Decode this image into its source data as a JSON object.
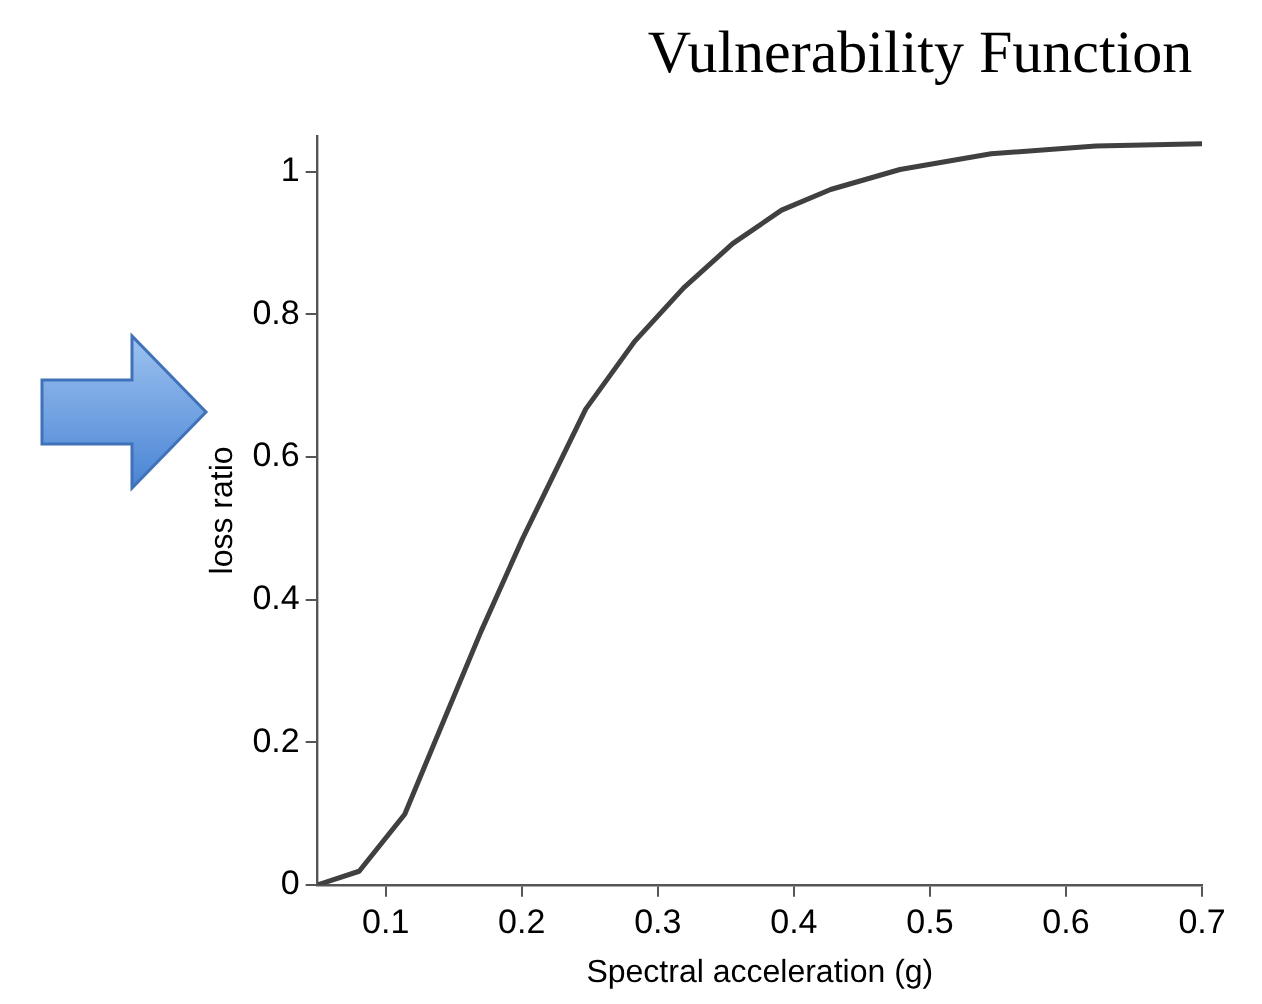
{
  "chart_data": {
    "type": "line",
    "title": "Vulnerability Function",
    "xlabel": "Spectral acceleration (g)",
    "ylabel": "loss ratio",
    "x": [
      0.05,
      0.0805,
      0.114,
      0.145,
      0.17,
      0.201,
      0.247,
      0.283,
      0.319,
      0.355,
      0.391,
      0.427,
      0.478,
      0.545,
      0.622,
      0.7
    ],
    "series": [
      {
        "color": "#404040",
        "values": [
          0,
          0.019,
          0.099,
          0.241,
          0.355,
          0.487,
          0.667,
          0.762,
          0.837,
          0.899,
          0.946,
          0.975,
          1.003,
          1.025,
          1.036,
          1.039
        ]
      }
    ],
    "xlim": [
      0.05,
      0.7
    ],
    "xticks": [
      0.1,
      0.2,
      0.3,
      0.4,
      0.5,
      0.6,
      0.7
    ],
    "ylim": [
      0,
      1.05
    ],
    "yticks": [
      0,
      0.2,
      0.4,
      0.6,
      0.8,
      1
    ],
    "grid": false,
    "legend": false,
    "marker": "none",
    "line_style": "solid"
  }
}
